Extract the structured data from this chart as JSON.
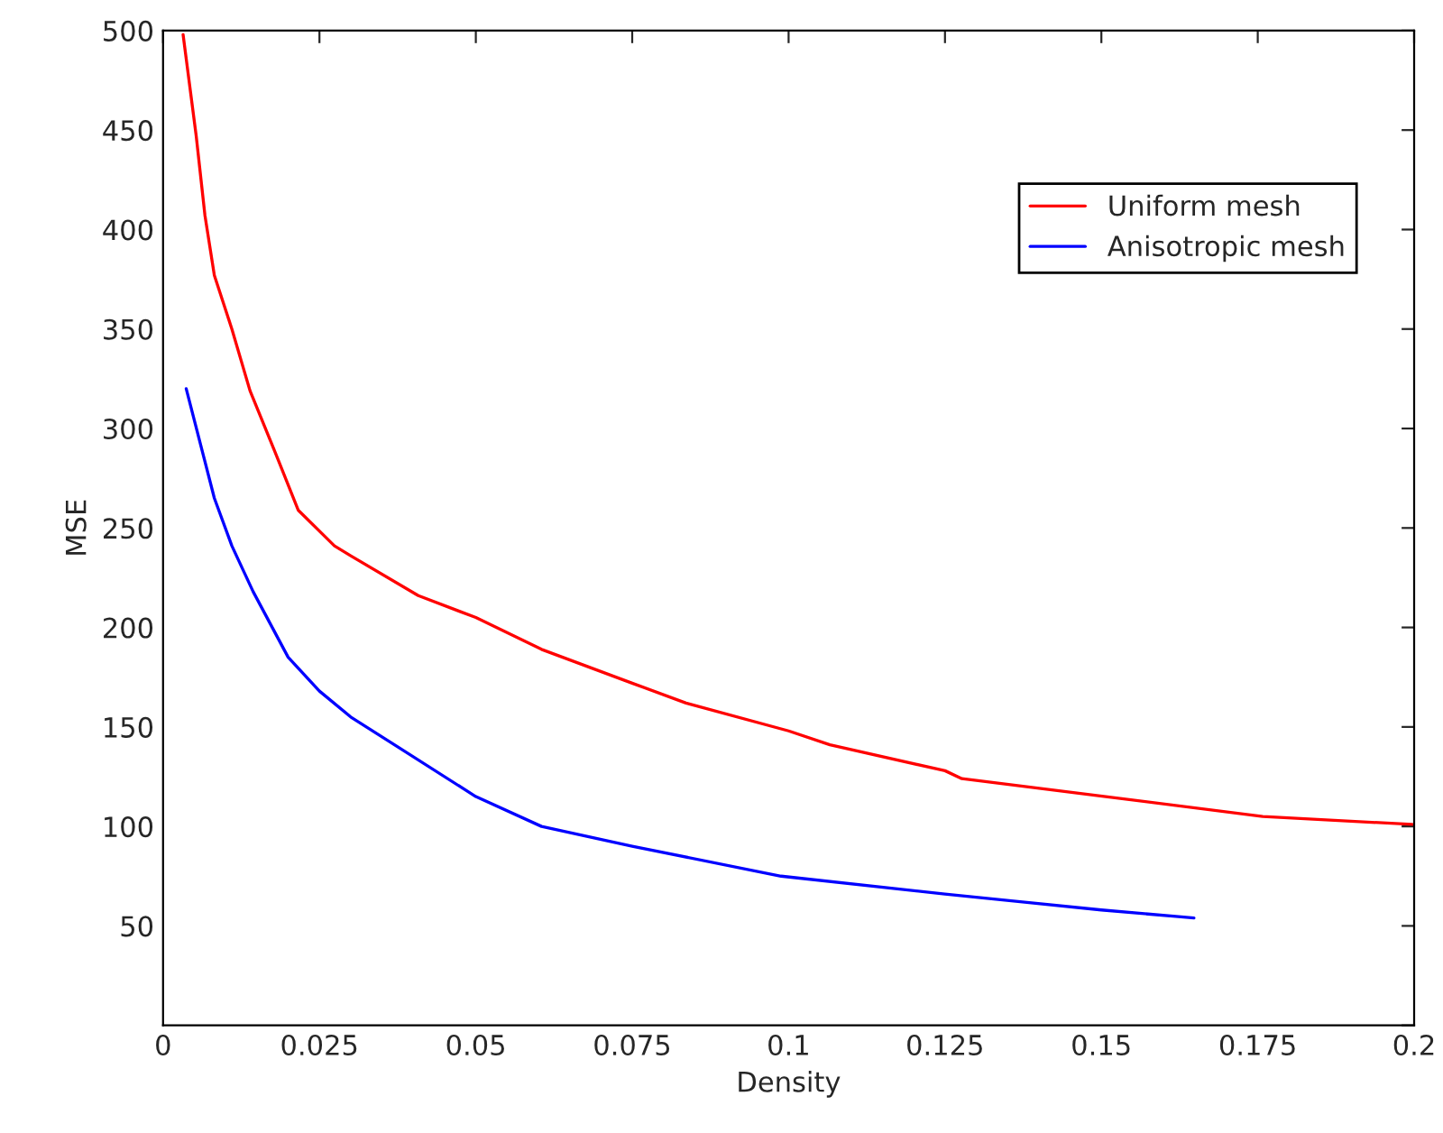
{
  "chart_data": {
    "type": "line",
    "xlabel": "Density",
    "ylabel": "MSE",
    "series": [
      {
        "name": "Uniform mesh",
        "color": "#ff0000",
        "x": [
          0.0032,
          0.0053,
          0.0067,
          0.0082,
          0.011,
          0.0139,
          0.0178,
          0.0216,
          0.0274,
          0.03,
          0.0408,
          0.05,
          0.0605,
          0.075,
          0.0836,
          0.1,
          0.1066,
          0.125,
          0.1277,
          0.1507,
          0.1758,
          0.1997
        ],
        "values": [
          498,
          447,
          407,
          377,
          350,
          319,
          289,
          259,
          241,
          236,
          216,
          205,
          189,
          172,
          162,
          148,
          141,
          128,
          124,
          115,
          105,
          101
        ]
      },
      {
        "name": "Anisotropic mesh",
        "color": "#0000ff",
        "x": [
          0.0037,
          0.0082,
          0.011,
          0.0144,
          0.02,
          0.025,
          0.03,
          0.0375,
          0.05,
          0.0605,
          0.075,
          0.0988,
          0.125,
          0.1374,
          0.15,
          0.1648
        ],
        "values": [
          320,
          265,
          241,
          218,
          185,
          168,
          155,
          140,
          115,
          100,
          90,
          75,
          66,
          62,
          58,
          54
        ]
      }
    ],
    "xlim": [
      0,
      0.2
    ],
    "xticks": [
      0,
      0.025,
      0.05,
      0.075,
      0.1,
      0.125,
      0.15,
      0.175,
      0.2
    ],
    "ylim": [
      0,
      500
    ],
    "yticks": [
      {
        "value": 0,
        "label": null
      },
      50,
      100,
      150,
      200,
      250,
      300,
      350,
      400,
      450,
      500
    ],
    "legend": "upper right",
    "grid": false,
    "marker": "none",
    "line_style": "solid"
  }
}
